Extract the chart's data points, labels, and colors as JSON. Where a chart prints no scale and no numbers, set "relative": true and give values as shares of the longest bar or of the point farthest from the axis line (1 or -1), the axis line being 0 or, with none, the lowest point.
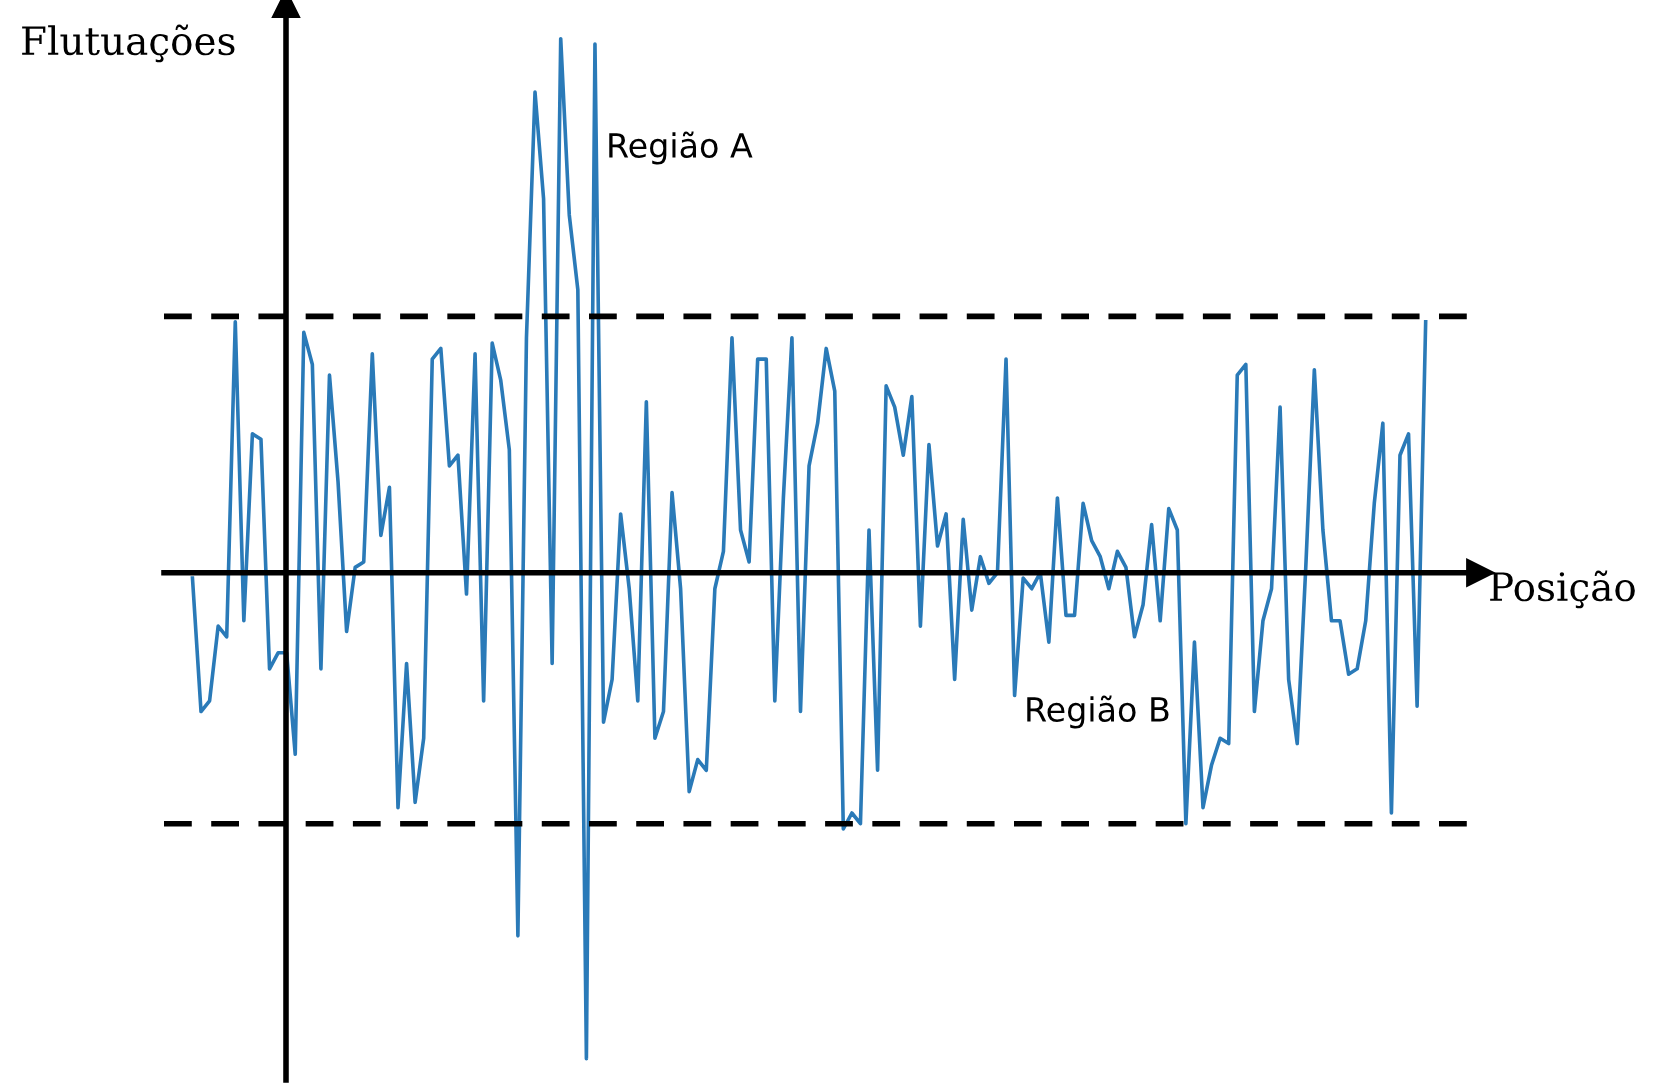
{
  "chart_data": {
    "type": "line",
    "relative": true,
    "xlabel": "Posição",
    "ylabel": "Flutuações",
    "annotations": [
      "Região A",
      "Região B"
    ],
    "categories": [
      null,
      null,
      null,
      null,
      null,
      null,
      null,
      null,
      null,
      null,
      null,
      null,
      null,
      null,
      null,
      null,
      null,
      null,
      null,
      null,
      null,
      null,
      null,
      null,
      null,
      null,
      null,
      null,
      null,
      null,
      null,
      null,
      null,
      null,
      null,
      null,
      null,
      null,
      null,
      null,
      null,
      null,
      null,
      null,
      null,
      null,
      null,
      null,
      null,
      null,
      null,
      null,
      null,
      null,
      null,
      null,
      null,
      null,
      null,
      null,
      null,
      null,
      null,
      null,
      null,
      null,
      null,
      null,
      null,
      null,
      null,
      null,
      null,
      null,
      null,
      null,
      null,
      null,
      null,
      null,
      null,
      null,
      null,
      null,
      null,
      null,
      null,
      null,
      null,
      null,
      null,
      null,
      null,
      null,
      null,
      null,
      null,
      null,
      null,
      null,
      null,
      null,
      null,
      null,
      null,
      null,
      null,
      null,
      null,
      null,
      null,
      null,
      null,
      null,
      null,
      null,
      null,
      null,
      null,
      null,
      null,
      null,
      null,
      null,
      null,
      null,
      null,
      null,
      null,
      null,
      null,
      null,
      null,
      null,
      null,
      null,
      null,
      null,
      null,
      null,
      null,
      null,
      null,
      null,
      null
    ],
    "series": [
      {
        "color": "#2a7ab8",
        "values": [
          -0.01,
          -0.26,
          -0.24,
          -0.1,
          -0.12,
          0.47,
          -0.09,
          0.26,
          0.25,
          -0.18,
          -0.15,
          -0.15,
          -0.34,
          0.45,
          0.39,
          -0.18,
          0.37,
          0.17,
          -0.11,
          0.01,
          0.02,
          0.41,
          0.07,
          0.16,
          -0.44,
          -0.17,
          -0.43,
          -0.31,
          0.4,
          0.42,
          0.2,
          0.22,
          -0.04,
          0.41,
          -0.24,
          0.43,
          0.36,
          0.23,
          -0.68,
          0.44,
          0.9,
          0.7,
          -0.17,
          1,
          0.67,
          0.53,
          -0.91,
          0.99,
          -0.28,
          -0.2,
          0.11,
          -0.03,
          -0.24,
          0.32,
          -0.31,
          -0.26,
          0.15,
          -0.03,
          -0.41,
          -0.35,
          -0.37,
          -0.03,
          0.04,
          0.44,
          0.08,
          0.02,
          0.4,
          0.4,
          -0.24,
          0.14,
          0.44,
          -0.26,
          0.2,
          0.28,
          0.42,
          0.34,
          -0.48,
          -0.45,
          -0.47,
          0.08,
          -0.37,
          0.35,
          0.31,
          0.22,
          0.33,
          -0.1,
          0.24,
          0.05,
          0.11,
          -0.2,
          0.1,
          -0.07,
          0.03,
          -0.02,
          0.0,
          0.4,
          -0.23,
          -0.01,
          -0.03,
          0.0,
          -0.13,
          0.14,
          -0.08,
          -0.08,
          0.13,
          0.06,
          0.03,
          -0.03,
          0.04,
          0.01,
          -0.12,
          -0.06,
          0.09,
          -0.09,
          0.12,
          0.08,
          -0.47,
          -0.13,
          -0.44,
          -0.36,
          -0.31,
          -0.32,
          0.37,
          0.39,
          -0.26,
          -0.09,
          -0.03,
          0.31,
          -0.2,
          -0.32,
          0.01,
          0.38,
          0.08,
          -0.09,
          -0.09,
          -0.19,
          -0.18,
          -0.09,
          0.13,
          0.28,
          -0.45,
          0.22,
          0.26,
          -0.25,
          0.47
        ]
      }
    ],
    "ref_lines": [
      {
        "axis": "y",
        "value": 0.48,
        "color": "#000000",
        "line_style": "dashed"
      },
      {
        "axis": "y",
        "value": -0.47,
        "color": "#000000",
        "line_style": "dashed"
      }
    ],
    "legend": false
  }
}
